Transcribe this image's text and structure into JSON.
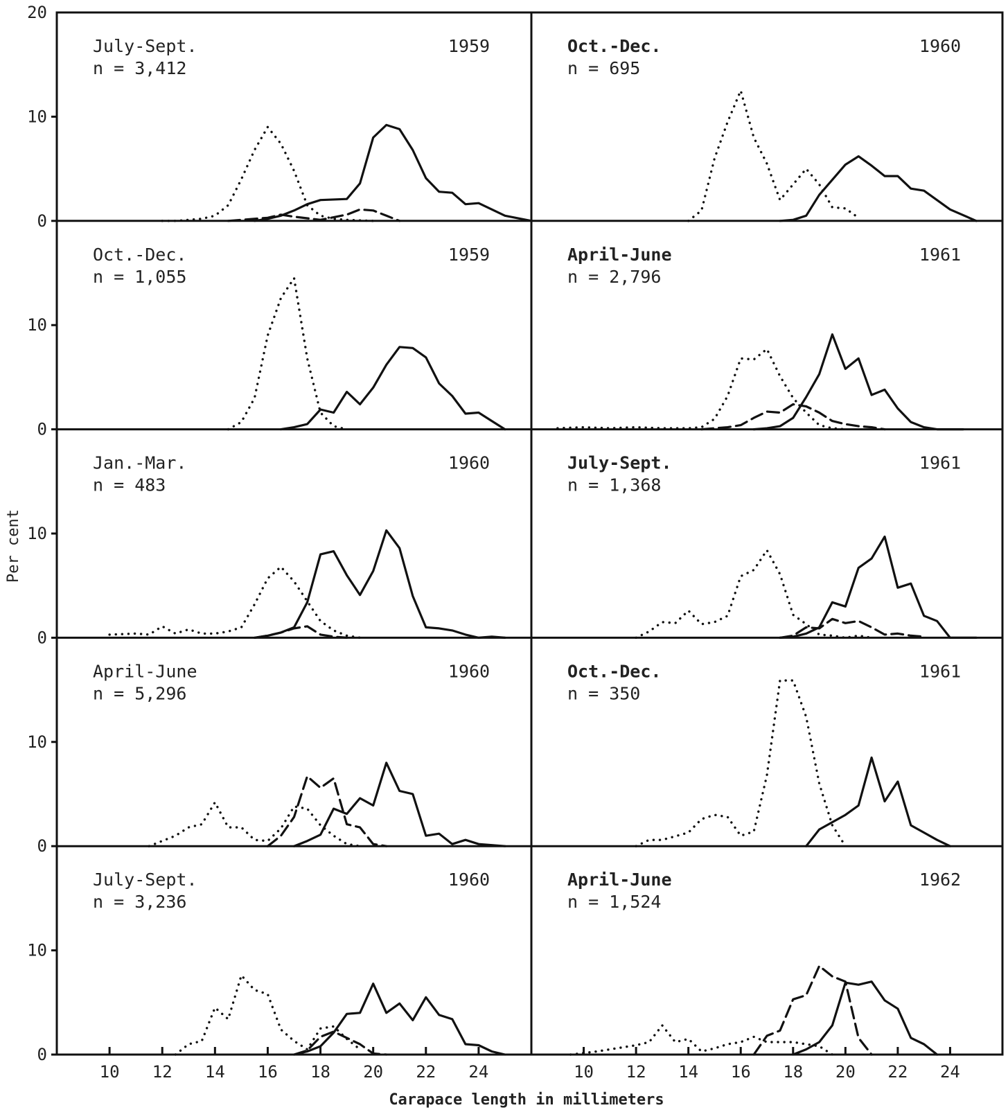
{
  "figure": {
    "ylabel": "Per cent",
    "xlabel": "Carapace length in millimeters",
    "y_tick_labels": [
      "0",
      "10",
      "20"
    ],
    "x_tick_labels": [
      "10",
      "12",
      "14",
      "16",
      "18",
      "20",
      "22",
      "24"
    ]
  },
  "chart_data": [
    {
      "type": "line",
      "panel_label": "July-Sept.",
      "n_label": "n = 3,412",
      "year": "1959",
      "xlim": [
        8,
        26
      ],
      "ylim": [
        0,
        20
      ],
      "series": [
        {
          "style": "dotted",
          "x": [
            12,
            12.5,
            13,
            13.5,
            14,
            14.5,
            15,
            15.5,
            16,
            16.5,
            17,
            17.5,
            18,
            18.5,
            19,
            20
          ],
          "y": [
            0,
            0,
            0.1,
            0.2,
            0.5,
            1.5,
            4,
            6.8,
            9,
            7.4,
            4.8,
            1.5,
            0.5,
            0.2,
            0.1,
            0
          ]
        },
        {
          "style": "solid",
          "x": [
            15.5,
            16,
            16.5,
            17,
            17.5,
            18,
            19,
            19.5,
            20,
            20.5,
            21,
            21.5,
            22,
            22.5,
            23,
            23.5,
            24,
            25,
            26
          ],
          "y": [
            0,
            0.2,
            0.5,
            1,
            1.6,
            2,
            2.1,
            3.6,
            8,
            9.2,
            8.8,
            6.8,
            4.1,
            2.8,
            2.7,
            1.6,
            1.7,
            0.5,
            0
          ]
        },
        {
          "style": "dashed",
          "x": [
            14.5,
            15,
            16,
            16.5,
            17,
            18,
            19,
            19.5,
            20,
            20.5,
            21
          ],
          "y": [
            0,
            0.1,
            0.3,
            0.6,
            0.4,
            0.1,
            0.6,
            1.1,
            1,
            0.5,
            0
          ]
        }
      ]
    },
    {
      "type": "line",
      "panel_label": "Oct.-Dec.",
      "n_label": "n = 695",
      "year": "1960",
      "xlim": [
        8,
        26
      ],
      "ylim": [
        0,
        20
      ],
      "series": [
        {
          "style": "dotted",
          "x": [
            14,
            14.5,
            15,
            15.5,
            16,
            16.5,
            17,
            17.5,
            18,
            18.5,
            19,
            19.5,
            20,
            20.5
          ],
          "y": [
            0,
            1,
            6,
            9.5,
            12.5,
            8,
            5.5,
            2,
            3.5,
            5,
            3.5,
            1.3,
            1.2,
            0.3
          ]
        },
        {
          "style": "solid",
          "x": [
            17.5,
            18,
            18.5,
            19,
            20,
            20.5,
            21,
            21.5,
            22,
            22.5,
            23,
            24,
            25
          ],
          "y": [
            0,
            0.1,
            0.5,
            2.5,
            5.4,
            6.2,
            5.3,
            4.3,
            4.3,
            3.1,
            2.9,
            1.1,
            0
          ]
        }
      ]
    },
    {
      "type": "line",
      "panel_label": "Oct.-Dec.",
      "n_label": "n = 1,055",
      "year": "1959",
      "xlim": [
        8,
        26
      ],
      "ylim": [
        0,
        20
      ],
      "series": [
        {
          "style": "dotted",
          "x": [
            14.5,
            15,
            15.5,
            16,
            16.5,
            17,
            17.5,
            18,
            18.5,
            19
          ],
          "y": [
            0,
            0.7,
            3,
            9,
            12.6,
            14.5,
            6.8,
            1.6,
            0.3,
            0
          ]
        },
        {
          "style": "solid",
          "x": [
            16.5,
            17,
            17.5,
            18,
            18.5,
            19,
            19.5,
            20,
            20.5,
            21,
            21.5,
            22,
            22.5,
            23,
            23.5,
            24,
            24.5,
            25
          ],
          "y": [
            0,
            0.2,
            0.5,
            1.9,
            1.6,
            3.6,
            2.4,
            4,
            6.2,
            7.9,
            7.8,
            6.9,
            4.4,
            3.2,
            1.5,
            1.6,
            0.8,
            0
          ]
        }
      ]
    },
    {
      "type": "line",
      "panel_label": "April-June",
      "n_label": "n = 2,796",
      "year": "1961",
      "xlim": [
        8,
        26
      ],
      "ylim": [
        0,
        20
      ],
      "series": [
        {
          "style": "dotted",
          "x": [
            9,
            10,
            11,
            12,
            13,
            14,
            14.5,
            15,
            15.5,
            16,
            16.5,
            17,
            17.5,
            18,
            18.5,
            19,
            19.5,
            20
          ],
          "y": [
            0.1,
            0.2,
            0.1,
            0.2,
            0.1,
            0.1,
            0.2,
            1,
            3.2,
            6.8,
            6.7,
            7.7,
            5.1,
            3,
            1.6,
            0.4,
            0.1,
            0
          ]
        },
        {
          "style": "dashed",
          "x": [
            14.5,
            15,
            15.5,
            16,
            16.5,
            17,
            17.5,
            18,
            18.5,
            19,
            19.5,
            20,
            20.5,
            21,
            21.5
          ],
          "y": [
            0,
            0.1,
            0.2,
            0.4,
            1.1,
            1.7,
            1.6,
            2.4,
            2.2,
            1.6,
            0.8,
            0.5,
            0.3,
            0.2,
            0
          ]
        },
        {
          "style": "solid",
          "x": [
            16.5,
            17,
            17.5,
            18,
            18.5,
            19,
            19.5,
            20,
            20.5,
            21,
            21.5,
            22,
            22.5,
            23,
            23.5,
            24,
            24.5
          ],
          "y": [
            0,
            0.1,
            0.3,
            1.1,
            3.1,
            5.3,
            9.1,
            5.8,
            6.8,
            3.3,
            3.8,
            2,
            0.7,
            0.2,
            0,
            0,
            0
          ]
        }
      ]
    },
    {
      "type": "line",
      "panel_label": "Jan.-Mar.",
      "n_label": "n = 483",
      "year": "1960",
      "xlim": [
        8,
        26
      ],
      "ylim": [
        0,
        20
      ],
      "series": [
        {
          "style": "dotted",
          "x": [
            10,
            11,
            11.5,
            12,
            12.5,
            13,
            13.5,
            14,
            14.5,
            15,
            15.5,
            16,
            16.5,
            17,
            17.5,
            18,
            18.5,
            19,
            19.5
          ],
          "y": [
            0.3,
            0.4,
            0.3,
            1.1,
            0.4,
            0.8,
            0.4,
            0.4,
            0.6,
            1,
            3.2,
            5.7,
            6.8,
            5.4,
            3.5,
            1.6,
            0.7,
            0.2,
            0
          ]
        },
        {
          "style": "solid",
          "x": [
            15.5,
            16,
            16.5,
            17,
            17.5,
            18,
            18.5,
            19,
            19.5,
            20,
            20.5,
            21,
            21.5,
            22,
            22.5,
            23,
            23.5,
            24,
            24.5,
            25
          ],
          "y": [
            0,
            0.2,
            0.5,
            1,
            3.4,
            8,
            8.3,
            6,
            4.1,
            6.4,
            10.3,
            8.6,
            4,
            1,
            0.9,
            0.7,
            0.3,
            0,
            0.1,
            0
          ]
        },
        {
          "style": "dashed",
          "x": [
            15.5,
            16,
            16.5,
            17,
            17.5,
            18,
            18.5,
            19
          ],
          "y": [
            0,
            0.2,
            0.5,
            0.9,
            1.1,
            0.3,
            0.1,
            0
          ]
        }
      ]
    },
    {
      "type": "line",
      "panel_label": "July-Sept.",
      "n_label": "n = 1,368",
      "year": "1961",
      "xlim": [
        8,
        26
      ],
      "ylim": [
        0,
        20
      ],
      "series": [
        {
          "style": "dotted",
          "x": [
            12,
            12.5,
            13,
            13.5,
            14,
            14.5,
            15,
            15.5,
            16,
            16.5,
            17,
            17.5,
            18,
            18.5,
            19,
            19.5,
            20,
            20.5,
            21
          ],
          "y": [
            0,
            0.6,
            1.5,
            1.4,
            2.6,
            1.3,
            1.5,
            2.1,
            5.9,
            6.5,
            8.4,
            6.1,
            2.2,
            1.3,
            0.3,
            0.2,
            0,
            0.2,
            0
          ]
        },
        {
          "style": "dashed",
          "x": [
            17.5,
            18,
            18.5,
            19,
            19.5,
            20,
            20.5,
            21,
            21.5,
            22,
            22.5,
            23
          ],
          "y": [
            0,
            0.2,
            1,
            0.9,
            1.8,
            1.4,
            1.6,
            1,
            0.3,
            0.4,
            0.2,
            0.1
          ]
        },
        {
          "style": "solid",
          "x": [
            17.5,
            18,
            18.5,
            19,
            19.5,
            20,
            20.5,
            21,
            21.5,
            22,
            22.5,
            23,
            23.5,
            24,
            24.5,
            25
          ],
          "y": [
            0,
            0.1,
            0.4,
            1,
            3.4,
            3,
            6.7,
            7.6,
            9.7,
            4.8,
            5.2,
            2.1,
            1.6,
            0,
            0,
            0
          ]
        }
      ]
    },
    {
      "type": "line",
      "panel_label": "April-June",
      "n_label": "n = 5,296",
      "year": "1960",
      "xlim": [
        8,
        26
      ],
      "ylim": [
        0,
        20
      ],
      "series": [
        {
          "style": "dotted",
          "x": [
            11.5,
            12,
            12.5,
            13,
            13.5,
            14,
            14.5,
            15,
            15.5,
            16,
            16.5,
            17,
            17.5,
            18,
            18.5,
            19,
            19.5
          ],
          "y": [
            0,
            0.5,
            1,
            1.8,
            2.1,
            4.2,
            1.8,
            1.8,
            0.6,
            0.5,
            1.7,
            3.8,
            3.6,
            2,
            1,
            0.2,
            0
          ]
        },
        {
          "style": "dashed",
          "x": [
            16,
            16.5,
            17,
            17.5,
            18,
            18.5,
            19,
            19.5,
            20,
            20.5
          ],
          "y": [
            0,
            1,
            2.8,
            6.7,
            5.6,
            6.5,
            2.1,
            1.8,
            0.2,
            0
          ]
        },
        {
          "style": "solid",
          "x": [
            17,
            17.5,
            18,
            18.5,
            19,
            19.5,
            20,
            20.5,
            21,
            21.5,
            22,
            22.5,
            23,
            23.5,
            24,
            24.5,
            25
          ],
          "y": [
            0,
            0.5,
            1.1,
            3.6,
            3.1,
            4.6,
            3.9,
            8,
            5.3,
            5,
            1,
            1.2,
            0.2,
            0.6,
            0.2,
            0.1,
            0
          ]
        }
      ]
    },
    {
      "type": "line",
      "panel_label": "Oct.-Dec.",
      "n_label": "n = 350",
      "year": "1961",
      "xlim": [
        8,
        26
      ],
      "ylim": [
        0,
        20
      ],
      "series": [
        {
          "style": "dotted",
          "x": [
            12,
            12.5,
            13,
            14,
            14.5,
            15,
            15.5,
            16,
            16.5,
            17,
            17.5,
            18,
            18.5,
            19,
            19.5,
            20
          ],
          "y": [
            0,
            0.6,
            0.6,
            1.3,
            2.6,
            3,
            2.8,
            1,
            1.4,
            6.8,
            15.9,
            15.9,
            12.4,
            6,
            2,
            0
          ]
        },
        {
          "style": "solid",
          "x": [
            18.5,
            19,
            19.5,
            20,
            20.5,
            21,
            21.5,
            22,
            22.5,
            23,
            23.5,
            24
          ],
          "y": [
            0,
            1.6,
            2.3,
            3,
            3.9,
            8.5,
            4.3,
            6.2,
            2,
            1.3,
            0.6,
            0
          ]
        }
      ]
    },
    {
      "type": "line",
      "panel_label": "July-Sept.",
      "n_label": "n = 3,236",
      "year": "1960",
      "xlim": [
        8,
        26
      ],
      "ylim": [
        0,
        20
      ],
      "series": [
        {
          "style": "dotted",
          "x": [
            12.5,
            13,
            13.5,
            14,
            14.5,
            15,
            15.5,
            16,
            16.5,
            17,
            17.5,
            18,
            18.5,
            19,
            19.5
          ],
          "y": [
            0,
            1,
            1.3,
            4.5,
            3.4,
            7.6,
            6.2,
            5.8,
            2.4,
            1.3,
            0.5,
            2.5,
            2.7,
            1.5,
            0.5
          ]
        },
        {
          "style": "dashed",
          "x": [
            17,
            17.5,
            18,
            18.5,
            19,
            19.5,
            20,
            20.5
          ],
          "y": [
            0,
            0.4,
            1.7,
            2.2,
            1.6,
            1,
            0.1,
            0
          ]
        },
        {
          "style": "solid",
          "x": [
            17,
            17.5,
            18,
            18.5,
            19,
            19.5,
            20,
            20.5,
            21,
            21.5,
            22,
            22.5,
            23,
            23.5,
            24,
            24.5,
            25
          ],
          "y": [
            0,
            0.3,
            0.8,
            2.1,
            3.9,
            4,
            6.8,
            4,
            4.9,
            3.3,
            5.5,
            3.8,
            3.4,
            1,
            0.9,
            0.3,
            0
          ]
        }
      ]
    },
    {
      "type": "line",
      "panel_label": "April-June",
      "n_label": "n = 1,524",
      "year": "1962",
      "xlim": [
        8,
        26
      ],
      "ylim": [
        0,
        20
      ],
      "series": [
        {
          "style": "dotted",
          "x": [
            9.5,
            10.5,
            11,
            11.5,
            12,
            12.5,
            13,
            13.5,
            14,
            14.5,
            15,
            15.5,
            16,
            16.5,
            17,
            17.5,
            18,
            18.5,
            19,
            19.5
          ],
          "y": [
            0,
            0.3,
            0.5,
            0.7,
            0.9,
            1.2,
            2.8,
            1.2,
            1.5,
            0.3,
            0.6,
            1,
            1.2,
            1.7,
            1.2,
            1.2,
            1.2,
            1,
            0.8,
            0
          ]
        },
        {
          "style": "dashed",
          "x": [
            16.5,
            17,
            17.5,
            18,
            18.5,
            19,
            19.5,
            20,
            20.5,
            21
          ],
          "y": [
            0,
            1.8,
            2.3,
            5.3,
            5.7,
            8.5,
            7.5,
            7,
            1.6,
            0
          ]
        },
        {
          "style": "solid",
          "x": [
            18,
            18.5,
            19,
            19.5,
            20,
            20.5,
            21,
            21.5,
            22,
            22.5,
            23,
            23.5
          ],
          "y": [
            0,
            0.5,
            1.2,
            2.8,
            6.9,
            6.7,
            7,
            5.2,
            4.4,
            1.6,
            1,
            0
          ]
        }
      ]
    }
  ]
}
